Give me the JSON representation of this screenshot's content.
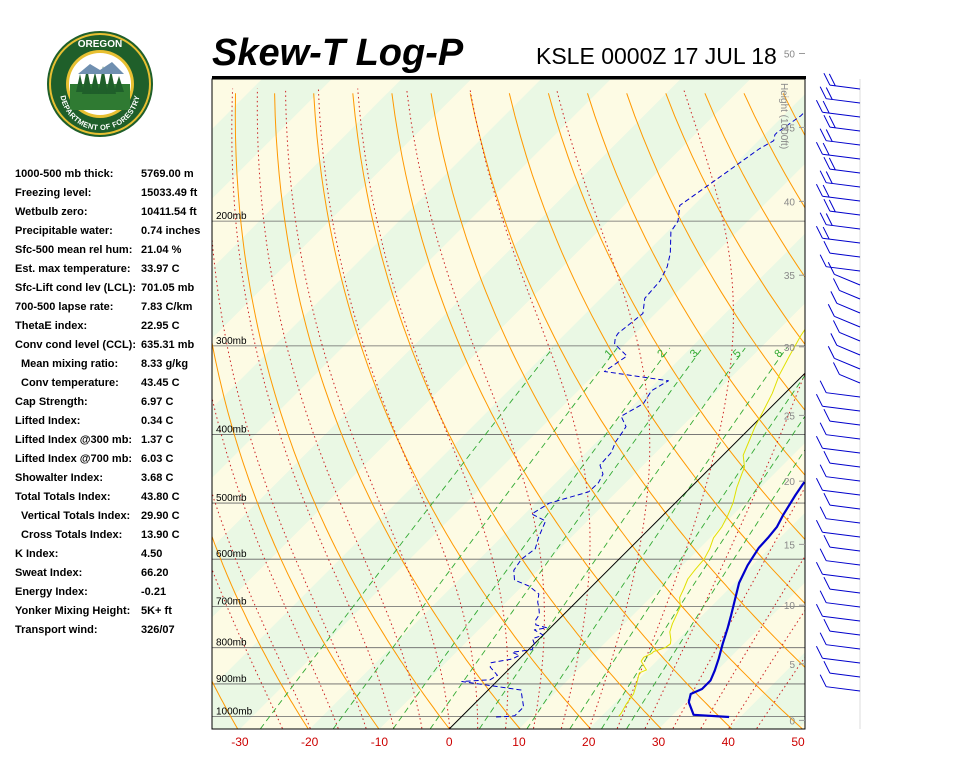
{
  "header": {
    "title": "Skew-T Log-P",
    "station": "KSLE 0000Z 17 JUL 18"
  },
  "logo": {
    "top_text": "OREGON",
    "bottom_text": "DEPARTMENT OF FORESTRY"
  },
  "stats": [
    {
      "label": "1000-500 mb thick:",
      "value": "5769.00 m"
    },
    {
      "label": "Freezing level:",
      "value": "15033.49 ft"
    },
    {
      "label": "Wetbulb zero:",
      "value": "10411.54 ft"
    },
    {
      "label": "Precipitable water:",
      "value": "0.74 inches"
    },
    {
      "label": "Sfc-500 mean rel hum:",
      "value": "21.04 %"
    },
    {
      "label": "Est. max temperature:",
      "value": "33.97 C"
    },
    {
      "label": "Sfc-Lift cond lev (LCL):",
      "value": "701.05 mb"
    },
    {
      "label": "700-500 lapse rate:",
      "value": "7.83 C/km"
    },
    {
      "label": "ThetaE index:",
      "value": "22.95 C"
    },
    {
      "label": "Conv cond level (CCL):",
      "value": "635.31 mb"
    },
    {
      "label": "Mean mixing ratio:",
      "value": "8.33 g/kg",
      "indent": true
    },
    {
      "label": "Conv temperature:",
      "value": "43.45 C",
      "indent": true
    },
    {
      "label": "Cap Strength:",
      "value": "6.97 C"
    },
    {
      "label": "Lifted Index:",
      "value": "0.34 C"
    },
    {
      "label": "Lifted Index @300 mb:",
      "value": "1.37 C"
    },
    {
      "label": "Lifted Index @700 mb:",
      "value": "6.03 C"
    },
    {
      "label": "Showalter Index:",
      "value": "3.68 C"
    },
    {
      "label": "Total Totals Index:",
      "value": "43.80 C"
    },
    {
      "label": "Vertical Totals Index:",
      "value": "29.90 C",
      "indent": true
    },
    {
      "label": "Cross Totals Index:",
      "value": "13.90 C",
      "indent": true
    },
    {
      "label": "K Index:",
      "value": "4.50"
    },
    {
      "label": "Sweat Index:",
      "value": "66.20"
    },
    {
      "label": "Energy Index:",
      "value": "-0.21"
    },
    {
      "label": "Yonker Mixing Height:",
      "value": "5K+ ft"
    },
    {
      "label": "Transport wind:",
      "value": "326/07"
    }
  ],
  "chart_data": {
    "type": "line",
    "subtype": "skew-t log-p",
    "title": "Skew-T Log-P",
    "subtitle": "KSLE 0000Z 17 JUL 18",
    "x_axis": {
      "ticks": [
        -30,
        -20,
        -10,
        0,
        10,
        20,
        30,
        40,
        50
      ],
      "xlim": [
        -34,
        51
      ],
      "tick_color": "#cc0000"
    },
    "pressure_axis": {
      "ticks": [
        1000,
        900,
        800,
        700,
        600,
        500,
        400,
        300,
        200
      ],
      "tick_labels": [
        "1000mb",
        "900mb",
        "800mb",
        "700mb",
        "600mb",
        "500mb",
        "400mb",
        "300mb",
        "200mb"
      ],
      "range_mb": [
        1042,
        126
      ],
      "scale": "log"
    },
    "height_axis": {
      "label": "Height (1000ft)",
      "ticks": [
        0,
        5,
        10,
        15,
        20,
        25,
        30,
        35,
        40,
        45,
        50
      ]
    },
    "mixing_ratio_labels": [
      "1",
      "2",
      "3",
      "5",
      "8"
    ],
    "grid": true,
    "colors": {
      "temperature": "#0000cc",
      "dewpoint": "#0000cc",
      "parcel": "#e0e000",
      "dry_adiabat": "#ff9900",
      "moist_adiabat": "#cc2222",
      "mixing_ratio": "#33aa33",
      "band_light": "#fdfbe4",
      "band_green": "#eaf8e4",
      "zero_isotherm": "#000000"
    },
    "series": [
      {
        "name": "Temperature",
        "style": "solid",
        "points": [
          [
            38.4,
            1002
          ],
          [
            33,
            995
          ],
          [
            30.5,
            955
          ],
          [
            29.6,
            930
          ],
          [
            30.5,
            915
          ],
          [
            30.5,
            890
          ],
          [
            29.7,
            862
          ],
          [
            28.5,
            828
          ],
          [
            27.0,
            790
          ],
          [
            25.5,
            752
          ],
          [
            24.1,
            720
          ],
          [
            22.3,
            682
          ],
          [
            20.6,
            648
          ],
          [
            19.3,
            612
          ],
          [
            18.4,
            578
          ],
          [
            18.3,
            560
          ],
          [
            18.0,
            540
          ],
          [
            17.2,
            520
          ],
          [
            16.1,
            487
          ],
          [
            15.6,
            470
          ],
          [
            15.4,
            462
          ],
          [
            14.8,
            442
          ],
          [
            13.1,
            408
          ],
          [
            11.7,
            388
          ],
          [
            10.6,
            373
          ],
          [
            10.0,
            355
          ],
          [
            9.2,
            327
          ],
          [
            8.0,
            300
          ],
          [
            7.0,
            275
          ],
          [
            5.8,
            250
          ],
          [
            4.1,
            226
          ],
          [
            3.3,
            216
          ],
          [
            1.7,
            212
          ],
          [
            1.7,
            202
          ],
          [
            0.1,
            196
          ],
          [
            -0.6,
            184
          ],
          [
            -1.8,
            175
          ],
          [
            -2.9,
            168
          ],
          [
            -3.4,
            160
          ],
          [
            -3.6,
            152
          ],
          [
            -2.3,
            147
          ],
          [
            -0.5,
            139
          ],
          [
            0.8,
            134
          ],
          [
            1.6,
            130
          ],
          [
            2.1,
            127
          ]
        ]
      },
      {
        "name": "Dewpoint",
        "style": "dashed",
        "points": [
          [
            5,
            1002
          ],
          [
            7,
            1000
          ],
          [
            7.5,
            998
          ],
          [
            7.5,
            970
          ],
          [
            4.7,
            918
          ],
          [
            -5,
            893
          ],
          [
            -1.2,
            888
          ],
          [
            -0.8,
            875
          ],
          [
            -3,
            852
          ],
          [
            -3.5,
            840
          ],
          [
            -1,
            830
          ],
          [
            -0.5,
            820
          ],
          [
            -2,
            812
          ],
          [
            0.5,
            805
          ],
          [
            0,
            790
          ],
          [
            -1,
            777
          ],
          [
            0,
            768
          ],
          [
            -2,
            755
          ],
          [
            -0.5,
            750
          ],
          [
            -2.5,
            743
          ],
          [
            -3.2,
            732
          ],
          [
            -3.5,
            718
          ],
          [
            -4.5,
            703
          ],
          [
            -5.5,
            690
          ],
          [
            -6.5,
            672
          ],
          [
            -9,
            655
          ],
          [
            -12,
            642
          ],
          [
            -13.5,
            622
          ],
          [
            -14,
            600
          ],
          [
            -13.5,
            580
          ],
          [
            -14.6,
            560
          ],
          [
            -15.3,
            545
          ],
          [
            -16,
            530
          ],
          [
            -19,
            518
          ],
          [
            -18,
            500
          ],
          [
            -14,
            482
          ],
          [
            -13.9,
            468
          ],
          [
            -14.5,
            455
          ],
          [
            -16.2,
            442
          ],
          [
            -16.4,
            424
          ],
          [
            -17.3,
            410
          ],
          [
            -17.8,
            395
          ],
          [
            -18,
            390
          ],
          [
            -20.2,
            377
          ],
          [
            -18.8,
            362
          ],
          [
            -19.5,
            347
          ],
          [
            -18.5,
            336
          ],
          [
            -29,
            326
          ],
          [
            -28,
            310
          ],
          [
            -31.5,
            298
          ],
          [
            -32.3,
            292
          ],
          [
            -32.5,
            288
          ],
          [
            -31.8,
            270
          ],
          [
            -33.7,
            257
          ],
          [
            -34,
            243
          ],
          [
            -35,
            232
          ],
          [
            -36.5,
            222
          ],
          [
            -39.5,
            207
          ],
          [
            -40,
            200
          ],
          [
            -42,
            190
          ],
          [
            -41,
            180
          ],
          [
            -40,
            170
          ],
          [
            -38.7,
            158
          ],
          [
            -37.8,
            154
          ],
          [
            -38.5,
            151
          ],
          [
            -38.5,
            150
          ],
          [
            -37.5,
            142
          ],
          [
            -37.5,
            140
          ],
          [
            -35.5,
            131
          ],
          [
            -35.5,
            130
          ]
        ]
      },
      {
        "name": "Parcel",
        "style": "solid",
        "points": [
          [
            22.5,
            1000
          ],
          [
            22.4,
            990
          ],
          [
            21.8,
            960
          ],
          [
            21.4,
            930
          ],
          [
            20.5,
            903
          ],
          [
            19.2,
            868
          ],
          [
            19.8,
            860
          ],
          [
            17.8,
            836
          ],
          [
            17.6,
            825
          ],
          [
            18.2,
            815
          ],
          [
            18.2,
            810
          ],
          [
            19.3,
            800
          ],
          [
            19.5,
            790
          ],
          [
            19.0,
            780
          ],
          [
            17.7,
            760
          ],
          [
            16.9,
            740
          ],
          [
            15.6,
            700
          ],
          [
            14.2,
            680
          ],
          [
            13.5,
            660
          ],
          [
            12.7,
            640
          ],
          [
            12.4,
            620
          ],
          [
            12.2,
            600
          ],
          [
            11.5,
            580
          ],
          [
            10.5,
            560
          ],
          [
            10.1,
            540
          ],
          [
            9.3,
            520
          ],
          [
            8.3,
            500
          ],
          [
            6.6,
            475
          ],
          [
            5.4,
            455
          ],
          [
            4.8,
            445
          ],
          [
            2.9,
            428
          ],
          [
            1.8,
            410
          ],
          [
            0.5,
            390
          ],
          [
            -0.6,
            370
          ],
          [
            -1.8,
            350
          ],
          [
            -3.4,
            330
          ],
          [
            -4.7,
            310
          ],
          [
            -6,
            290
          ],
          [
            -6.5,
            280
          ],
          [
            -6.1,
            272
          ],
          [
            -6.2,
            270
          ],
          [
            -8,
            250
          ],
          [
            -9.6,
            240
          ],
          [
            -10.5,
            230
          ],
          [
            -12.3,
            220
          ]
        ]
      }
    ],
    "wind_barbs": {
      "note": "wind barbs drawn in a column right of the plot, plotted from the surface to the top of the sounding"
    }
  }
}
